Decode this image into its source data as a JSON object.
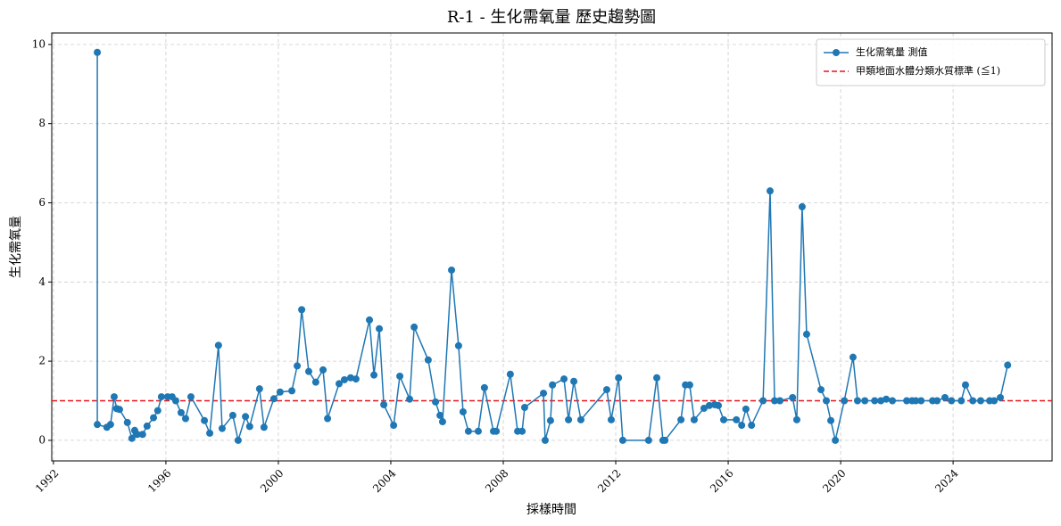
{
  "chart_data": {
    "type": "line",
    "title": "R-1 - 生化需氧量 歷史趨勢圖",
    "xlabel": "採樣時間",
    "ylabel": "生化需氧量",
    "xlim": [
      1991.94,
      2027.52
    ],
    "xticks": [
      1992,
      1996,
      2000,
      2004,
      2008,
      2012,
      2016,
      2020,
      2024
    ],
    "ylim": [
      -0.52,
      10.29
    ],
    "yticks": [
      0,
      2,
      4,
      6,
      8,
      10
    ],
    "grid": true,
    "legend": "upper right",
    "x": [
      1993.56,
      1993.56,
      1993.9,
      1994.03,
      1994.16,
      1994.25,
      1994.35,
      1994.63,
      1994.79,
      1994.89,
      1994.98,
      1995.17,
      1995.33,
      1995.56,
      1995.71,
      1995.84,
      1996.06,
      1996.22,
      1996.35,
      1996.54,
      1996.7,
      1996.89,
      1997.37,
      1997.56,
      1997.87,
      1998.0,
      1998.38,
      1998.57,
      1998.83,
      1998.98,
      1999.33,
      1999.49,
      1999.84,
      2000.06,
      2000.48,
      2000.67,
      2000.83,
      2001.08,
      2001.33,
      2001.59,
      2001.75,
      2002.16,
      2002.35,
      2002.57,
      2002.76,
      2003.24,
      2003.4,
      2003.59,
      2003.75,
      2004.1,
      2004.32,
      2004.67,
      2004.83,
      2005.33,
      2005.59,
      2005.75,
      2005.84,
      2006.16,
      2006.41,
      2006.57,
      2006.76,
      2007.11,
      2007.33,
      2007.65,
      2007.75,
      2008.25,
      2008.51,
      2008.67,
      2008.76,
      2009.43,
      2009.49,
      2009.68,
      2009.75,
      2010.16,
      2010.32,
      2010.51,
      2010.76,
      2011.68,
      2011.84,
      2012.1,
      2012.25,
      2013.17,
      2013.46,
      2013.68,
      2013.75,
      2014.32,
      2014.48,
      2014.63,
      2014.79,
      2015.14,
      2015.33,
      2015.52,
      2015.65,
      2015.84,
      2016.29,
      2016.48,
      2016.63,
      2016.83,
      2017.24,
      2017.49,
      2017.65,
      2017.84,
      2018.29,
      2018.44,
      2018.63,
      2018.79,
      2019.3,
      2019.49,
      2019.65,
      2019.81,
      2020.13,
      2020.44,
      2020.6,
      2020.86,
      2021.21,
      2021.43,
      2021.62,
      2021.84,
      2022.35,
      2022.54,
      2022.67,
      2022.86,
      2023.27,
      2023.43,
      2023.71,
      2023.94,
      2024.29,
      2024.44,
      2024.7,
      2024.98,
      2025.3,
      2025.46,
      2025.68,
      2025.94
    ],
    "series": [
      {
        "name": "生化需氧量 測值",
        "color": "#1f77b4",
        "values": [
          9.8,
          0.4,
          0.33,
          0.4,
          1.1,
          0.8,
          0.78,
          0.45,
          0.05,
          0.25,
          0.15,
          0.15,
          0.36,
          0.57,
          0.75,
          1.1,
          1.1,
          1.1,
          1.0,
          0.7,
          0.55,
          1.1,
          0.5,
          0.18,
          2.4,
          0.3,
          0.63,
          0,
          0.6,
          0.35,
          1.3,
          0.33,
          1.05,
          1.22,
          1.25,
          1.88,
          3.3,
          1.74,
          1.47,
          1.78,
          0.55,
          1.43,
          1.53,
          1.58,
          1.55,
          3.04,
          1.65,
          2.82,
          0.9,
          0.38,
          1.62,
          1.04,
          2.86,
          2.03,
          0.97,
          0.63,
          0.47,
          4.3,
          2.39,
          0.72,
          0.23,
          0.23,
          1.33,
          0.23,
          0.23,
          1.67,
          0.23,
          0.23,
          0.83,
          1.19,
          0,
          0.5,
          1.4,
          1.55,
          0.52,
          1.49,
          0.52,
          1.28,
          0.52,
          1.58,
          0,
          0,
          1.58,
          0,
          0,
          0.52,
          1.4,
          1.4,
          0.52,
          0.81,
          0.88,
          0.9,
          0.88,
          0.52,
          0.52,
          0.38,
          0.79,
          0.38,
          1.0,
          6.3,
          1.0,
          1.0,
          1.08,
          0.52,
          5.9,
          2.68,
          1.28,
          1.0,
          0.5,
          0,
          1.0,
          2.1,
          1.0,
          1.0,
          1.0,
          1.0,
          1.04,
          1.0,
          1.0,
          1.0,
          1.0,
          1.0,
          1.0,
          1.0,
          1.08,
          1.0,
          1.0,
          1.4,
          1.0,
          1.0,
          1.0,
          1.0,
          1.08,
          1.9
        ]
      }
    ],
    "hlines": [
      {
        "name": "甲類地面水體分類水質標準 (≦1)",
        "color": "#e8141c",
        "value": 1,
        "style": "dashed"
      }
    ]
  }
}
